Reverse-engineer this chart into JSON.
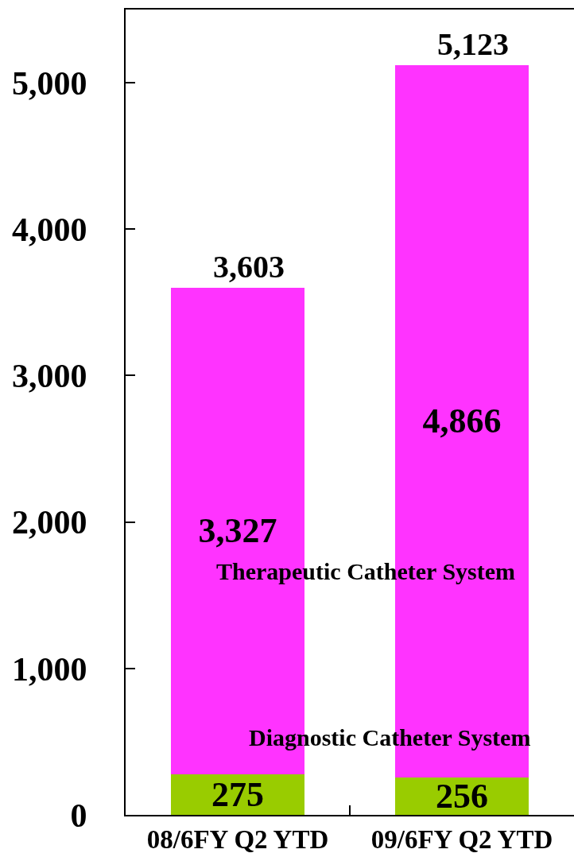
{
  "chart_data": {
    "type": "bar",
    "stacked": true,
    "categories": [
      "08/6FY Q2 YTD",
      "09/6FY Q2 YTD"
    ],
    "series": [
      {
        "name": "Diagnostic Catheter System",
        "color": "#99cc00",
        "values": [
          275,
          256
        ],
        "value_labels": [
          "275",
          "256"
        ]
      },
      {
        "name": "Therapeutic Catheter System",
        "color": "#ff33ff",
        "values": [
          3327,
          4866
        ],
        "value_labels": [
          "3,327",
          "4,866"
        ]
      }
    ],
    "totals": [
      "3,603",
      "5,123"
    ],
    "ylim": [
      0,
      5500
    ],
    "yticks": [
      0,
      {
        "value": 1000,
        "label": "1,000"
      },
      {
        "value": 2000,
        "label": "2,000"
      },
      {
        "value": 3000,
        "label": "3,000"
      },
      {
        "value": 4000,
        "label": "4,000"
      },
      {
        "value": 5000,
        "label": "5,000"
      }
    ],
    "grid": false
  }
}
